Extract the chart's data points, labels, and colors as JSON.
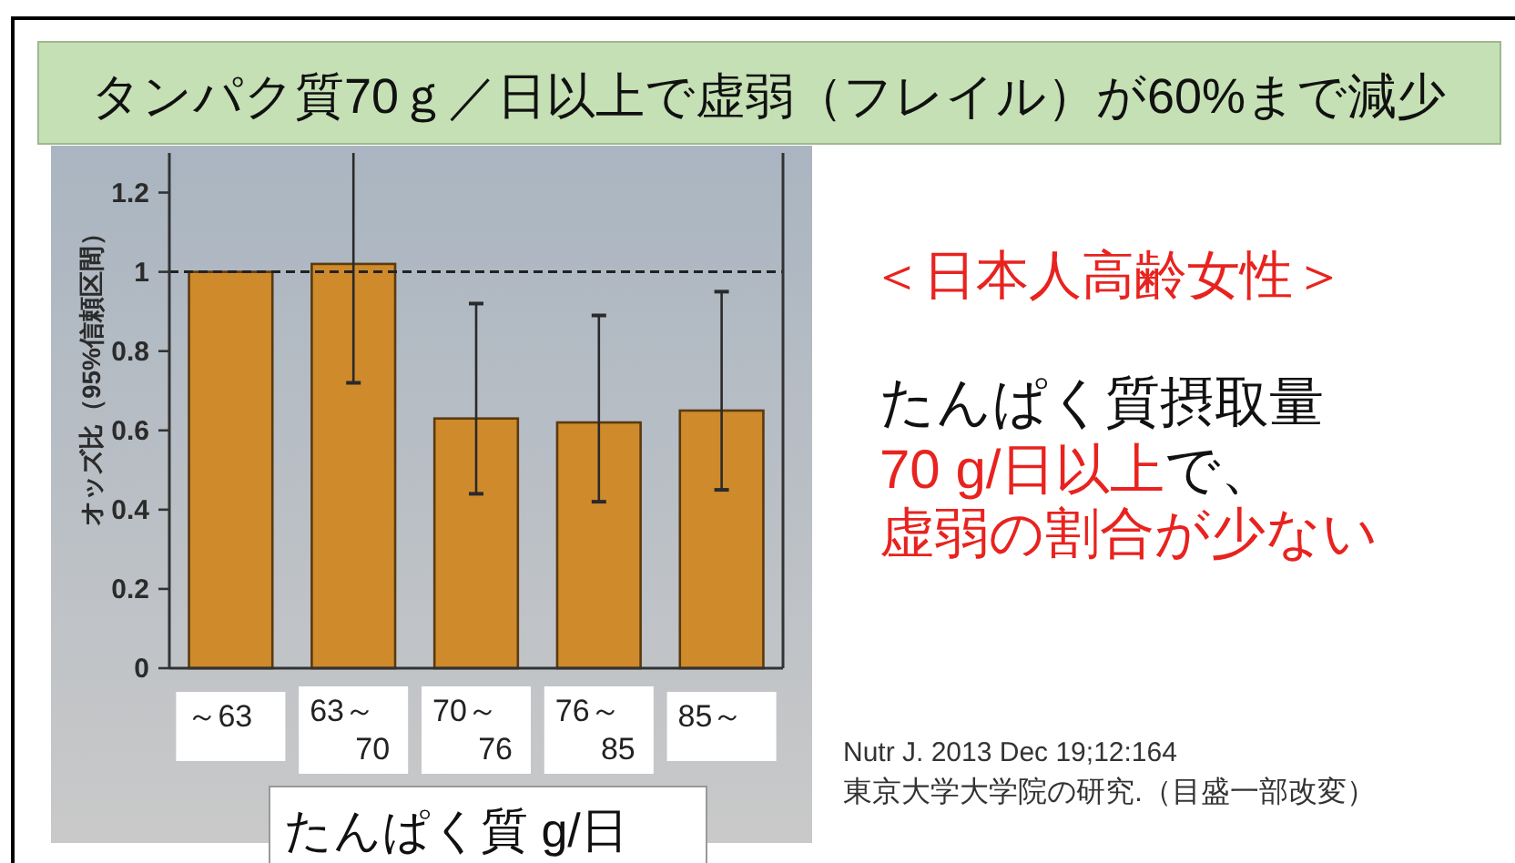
{
  "chart_data": {
    "type": "bar",
    "title": "タンパク質70ｇ／日以上で虚弱（フレイル）が60%まで減少",
    "xlabel": "たんぱく質 g/日",
    "ylabel": "オッズ比（95%信頼区間）",
    "categories": [
      "～63",
      "63～\n70",
      "70～\n76",
      "76～\n85",
      "85～"
    ],
    "values": [
      1.0,
      1.02,
      0.63,
      0.62,
      0.65
    ],
    "color": "#cf8a2b",
    "errors": [
      null,
      [
        0.72,
        1.3
      ],
      [
        0.44,
        0.92
      ],
      [
        0.42,
        0.89
      ],
      [
        0.45,
        0.95
      ]
    ],
    "ylim": [
      0,
      1.3
    ],
    "yticks": [
      0,
      0.2,
      0.4,
      0.6,
      0.8,
      1,
      1.2
    ],
    "ref_lines": [
      {
        "axis": "y",
        "value": 1,
        "line_style": "dashed",
        "color": "#222222"
      }
    ],
    "annotations": [
      "＜日本人高齢女性＞",
      "たんぱく質摂取量",
      "70 g/日以上",
      "で、",
      "虚弱の割合が少ない",
      "Nutr J. 2013 Dec 19;12:164",
      "東京大学大学院の研究.（目盛一部改変）"
    ]
  }
}
